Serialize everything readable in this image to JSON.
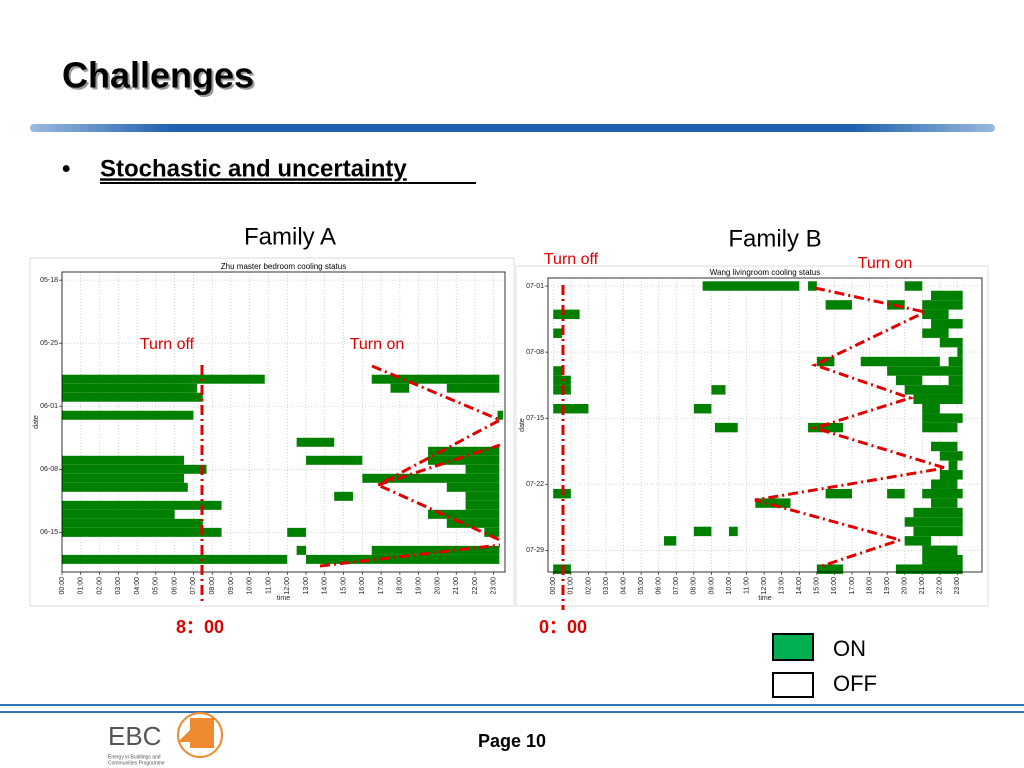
{
  "title": "Challenges",
  "bullet": "Stochastic and uncertainty",
  "chart_data": [
    {
      "type": "timeline",
      "heading": "Family A",
      "title": "Zhu master bedroom cooling status",
      "xlabel": "time",
      "ylabel": "date",
      "color": "#008000",
      "grid": true,
      "xlim": [
        0,
        23.6
      ],
      "ylim": [
        -0.9,
        32.4
      ],
      "xticks": [
        {
          "value": 0,
          "label": "00:00"
        },
        {
          "value": 1,
          "label": "01:00"
        },
        {
          "value": 2,
          "label": "02:00"
        },
        {
          "value": 3,
          "label": "03:00"
        },
        {
          "value": 4,
          "label": "04:00"
        },
        {
          "value": 5,
          "label": "05:00"
        },
        {
          "value": 6,
          "label": "06:00"
        },
        {
          "value": 7,
          "label": "07:00"
        },
        {
          "value": 8,
          "label": "08:00"
        },
        {
          "value": 9,
          "label": "09:00"
        },
        {
          "value": 10,
          "label": "10:00"
        },
        {
          "value": 11,
          "label": "11:00"
        },
        {
          "value": 12,
          "label": "12:00"
        },
        {
          "value": 13,
          "label": "13:00"
        },
        {
          "value": 14,
          "label": "14:00"
        },
        {
          "value": 15,
          "label": "15:00"
        },
        {
          "value": 16,
          "label": "16:00"
        },
        {
          "value": 17,
          "label": "17:00"
        },
        {
          "value": 18,
          "label": "18:00"
        },
        {
          "value": 19,
          "label": "19:00"
        },
        {
          "value": 20,
          "label": "20:00"
        },
        {
          "value": 21,
          "label": "21:00"
        },
        {
          "value": 22,
          "label": "22:00"
        },
        {
          "value": 23,
          "label": "23:00"
        }
      ],
      "yticks": [
        {
          "value": 0,
          "label": "05-18"
        },
        {
          "value": 7,
          "label": "05-25"
        },
        {
          "value": 14,
          "label": "06-01"
        },
        {
          "value": 21,
          "label": "06-08"
        },
        {
          "value": 28,
          "label": "06-15"
        }
      ],
      "segments": [
        [
          11,
          0,
          10.8
        ],
        [
          11,
          16.5,
          23.3
        ],
        [
          12,
          0,
          7.2
        ],
        [
          12,
          17.5,
          18.5
        ],
        [
          12,
          20.5,
          23.3
        ],
        [
          13,
          0,
          7.5
        ],
        [
          15,
          0,
          7
        ],
        [
          15,
          23.2,
          23.5
        ],
        [
          18,
          12.5,
          14.5
        ],
        [
          19,
          19.5,
          23.3
        ],
        [
          20,
          0,
          6.5
        ],
        [
          20,
          13,
          16
        ],
        [
          20,
          19.5,
          23.3
        ],
        [
          21,
          0,
          7.7
        ],
        [
          21,
          21.5,
          23.3
        ],
        [
          22,
          0,
          6.5
        ],
        [
          22,
          16,
          23.3
        ],
        [
          23,
          0,
          6.7
        ],
        [
          23,
          20.5,
          23.3
        ],
        [
          24,
          14.5,
          15.5
        ],
        [
          24,
          21.5,
          23.3
        ],
        [
          25,
          0,
          8.5
        ],
        [
          25,
          21.5,
          23.3
        ],
        [
          26,
          0,
          6
        ],
        [
          26,
          19.5,
          23.3
        ],
        [
          27,
          0,
          7.5
        ],
        [
          27,
          20.5,
          23.3
        ],
        [
          28,
          0,
          8.5
        ],
        [
          28,
          12,
          13
        ],
        [
          28,
          22.5,
          23.3
        ],
        [
          30,
          12.5,
          13
        ],
        [
          30,
          16.5,
          23.3
        ],
        [
          31,
          0,
          12
        ],
        [
          31,
          13,
          23.3
        ]
      ],
      "turn_off": "Turn off",
      "turn_on": "Turn on",
      "time_note": "8：00"
    },
    {
      "type": "timeline",
      "heading": "Family B",
      "title": "Wang livingroom cooling status",
      "xlabel": "time",
      "ylabel": "date",
      "color": "#008000",
      "grid": true,
      "xlim": [
        -0.3,
        24.4
      ],
      "ylim": [
        -0.85,
        30.3
      ],
      "xticks": [
        {
          "value": 0,
          "label": "00:00"
        },
        {
          "value": 1,
          "label": "01:00"
        },
        {
          "value": 2,
          "label": "02:00"
        },
        {
          "value": 3,
          "label": "03:00"
        },
        {
          "value": 4,
          "label": "04:00"
        },
        {
          "value": 5,
          "label": "05:00"
        },
        {
          "value": 6,
          "label": "06:00"
        },
        {
          "value": 7,
          "label": "07:00"
        },
        {
          "value": 8,
          "label": "08:00"
        },
        {
          "value": 9,
          "label": "09:00"
        },
        {
          "value": 10,
          "label": "10:00"
        },
        {
          "value": 11,
          "label": "11:00"
        },
        {
          "value": 12,
          "label": "12:00"
        },
        {
          "value": 13,
          "label": "13:00"
        },
        {
          "value": 14,
          "label": "14:00"
        },
        {
          "value": 15,
          "label": "15:00"
        },
        {
          "value": 16,
          "label": "16:00"
        },
        {
          "value": 17,
          "label": "17:00"
        },
        {
          "value": 18,
          "label": "18:00"
        },
        {
          "value": 19,
          "label": "19:00"
        },
        {
          "value": 20,
          "label": "20:00"
        },
        {
          "value": 21,
          "label": "21:00"
        },
        {
          "value": 22,
          "label": "22:00"
        },
        {
          "value": 23,
          "label": "23:00"
        }
      ],
      "yticks": [
        {
          "value": 0,
          "label": "07-01"
        },
        {
          "value": 7,
          "label": "07-08"
        },
        {
          "value": 14,
          "label": "07-15"
        },
        {
          "value": 21,
          "label": "07-22"
        },
        {
          "value": 28,
          "label": "07-29"
        }
      ],
      "segments": [
        [
          0,
          8.5,
          14
        ],
        [
          0,
          14.5,
          15
        ],
        [
          0,
          20,
          21
        ],
        [
          1,
          21.5,
          23.3
        ],
        [
          2,
          15.5,
          17
        ],
        [
          2,
          19,
          20
        ],
        [
          2,
          21,
          23.3
        ],
        [
          3,
          0,
          1.5
        ],
        [
          3,
          21,
          22.5
        ],
        [
          4,
          21.5,
          23.3
        ],
        [
          5,
          0,
          0.5
        ],
        [
          5,
          21,
          22.5
        ],
        [
          6,
          22,
          23.3
        ],
        [
          7,
          23,
          23.3
        ],
        [
          8,
          15,
          16
        ],
        [
          8,
          17.5,
          22
        ],
        [
          8,
          22.5,
          23.3
        ],
        [
          9,
          0,
          0.5
        ],
        [
          9,
          19,
          23.3
        ],
        [
          10,
          0,
          1
        ],
        [
          10,
          19.5,
          21
        ],
        [
          10,
          22.5,
          23.3
        ],
        [
          11,
          0,
          1
        ],
        [
          11,
          9,
          9.8
        ],
        [
          11,
          20,
          23.3
        ],
        [
          12,
          20.5,
          23.3
        ],
        [
          13,
          0,
          2
        ],
        [
          13,
          8,
          9
        ],
        [
          13,
          21,
          22
        ],
        [
          14,
          21,
          23.3
        ],
        [
          15,
          9.2,
          10.5
        ],
        [
          15,
          14.5,
          16.5
        ],
        [
          15,
          21,
          23
        ],
        [
          17,
          21.5,
          23
        ],
        [
          18,
          22,
          23.3
        ],
        [
          19,
          22.5,
          23
        ],
        [
          20,
          22,
          23.3
        ],
        [
          21,
          21.5,
          23
        ],
        [
          22,
          0,
          1
        ],
        [
          22,
          15.5,
          17
        ],
        [
          22,
          19,
          20
        ],
        [
          22,
          21,
          23.3
        ],
        [
          23,
          11.5,
          13.5
        ],
        [
          23,
          21.5,
          23
        ],
        [
          24,
          20.5,
          23.3
        ],
        [
          25,
          20,
          23.3
        ],
        [
          26,
          8,
          9
        ],
        [
          26,
          10,
          10.5
        ],
        [
          26,
          20.5,
          23.3
        ],
        [
          27,
          6.3,
          7
        ],
        [
          27,
          20,
          21.5
        ],
        [
          28,
          21,
          23
        ],
        [
          29,
          21,
          23.3
        ],
        [
          30,
          0,
          1
        ],
        [
          30,
          15,
          16.5
        ],
        [
          30,
          19.5,
          23.3
        ]
      ],
      "turn_off": "Turn off",
      "turn_on": "Turn on",
      "time_note": "0：00"
    }
  ],
  "legend": {
    "on": "ON",
    "off": "OFF"
  },
  "footer": {
    "logo": "EBC",
    "logo_sub_1": "Energy in Buildings and",
    "logo_sub_2": "Communities Programme",
    "page": "Page 10"
  }
}
